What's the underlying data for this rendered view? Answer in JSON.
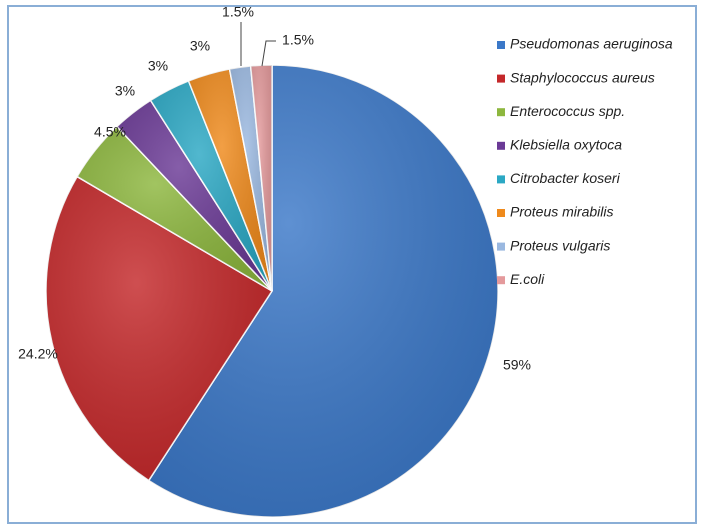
{
  "chart_data": {
    "type": "pie",
    "categories": [
      "Pseudomonas aeruginosa",
      "Staphylococcus aureus",
      "Enterococcus spp.",
      "Klebsiella oxytoca",
      "Citrobacter koseri",
      "Proteus mirabilis",
      "Proteus vulgaris",
      "E.coli"
    ],
    "values": [
      59,
      24.2,
      4.5,
      3,
      3,
      3,
      1.5,
      1.5
    ],
    "value_labels": [
      "59%",
      "24.2%",
      "4.5%",
      "3%",
      "3%",
      "3%",
      "1.5%",
      "1.5%"
    ],
    "colors": [
      "#3b78c8",
      "#c4282a",
      "#8db73e",
      "#6b3a96",
      "#2ba8c4",
      "#ef8a1c",
      "#9ab8e0",
      "#e49a9c"
    ],
    "legend": "right"
  }
}
